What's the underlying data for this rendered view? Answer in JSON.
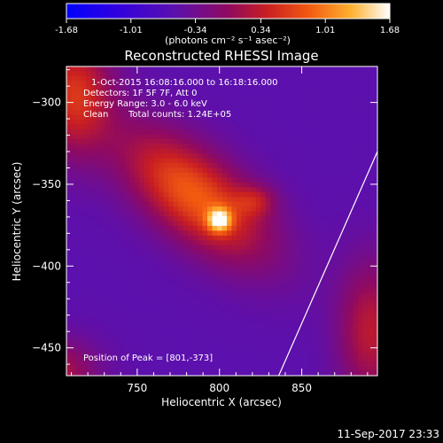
{
  "colorbar": {
    "tick_labels": [
      "-1.68",
      "-1.01",
      "-0.34",
      "0.34",
      "1.01",
      "1.68"
    ],
    "unit_label": "(photons cm⁻² s⁻¹ asec⁻²)",
    "range": [
      -1.68,
      1.68
    ],
    "colormap": [
      "#0000ff",
      "#5a00c8",
      "#7a1aa0",
      "#a01a50",
      "#d22a1e",
      "#ff7a10",
      "#ffd050",
      "#ffffff"
    ]
  },
  "annotations": {
    "time_range": "1-Oct-2015 16:08:16.000 to 16:18:16.000",
    "detectors": "Detectors: 1F 5F 7F, Att 0",
    "energy_range": "Energy Range: 3.0 - 6.0 keV",
    "method": "Clean",
    "total_counts": "Total counts: 1.24E+05",
    "peak_position": "Position of Peak = [801,-373]"
  },
  "footer": {
    "timestamp": "11-Sep-2017 23:33"
  },
  "chart_data": {
    "type": "heatmap",
    "title": "Reconstructed RHESSI Image",
    "xlabel": "Heliocentric X (arcsec)",
    "ylabel": "Heliocentric Y (arcsec)",
    "xlim": [
      707,
      896
    ],
    "ylim": [
      -467,
      -278
    ],
    "x_ticks": [
      750,
      800,
      850
    ],
    "y_ticks": [
      -300,
      -350,
      -400,
      -450
    ],
    "peak": {
      "x": 801,
      "y": -373
    },
    "grid": false,
    "sources": [
      {
        "x": 785,
        "y": -357,
        "sx": 38,
        "sy": 18,
        "angle_deg": -40,
        "amp": 0.9
      },
      {
        "x": 800,
        "y": -372,
        "sx": 5,
        "sy": 5,
        "angle_deg": 0,
        "amp": 0.9
      },
      {
        "x": 822,
        "y": -360,
        "sx": 9,
        "sy": 7,
        "angle_deg": 0,
        "amp": 0.35
      },
      {
        "x": 712,
        "y": -295,
        "sx": 16,
        "sy": 26,
        "angle_deg": 0,
        "amp": 0.7
      },
      {
        "x": 700,
        "y": -465,
        "sx": 18,
        "sy": 14,
        "angle_deg": 0,
        "amp": 0.5
      },
      {
        "x": 892,
        "y": -440,
        "sx": 14,
        "sy": 30,
        "angle_deg": 0,
        "amp": 0.55
      }
    ],
    "background_level": -0.05,
    "limb_line": [
      [
        836,
        -467
      ],
      [
        896,
        -330
      ]
    ]
  }
}
